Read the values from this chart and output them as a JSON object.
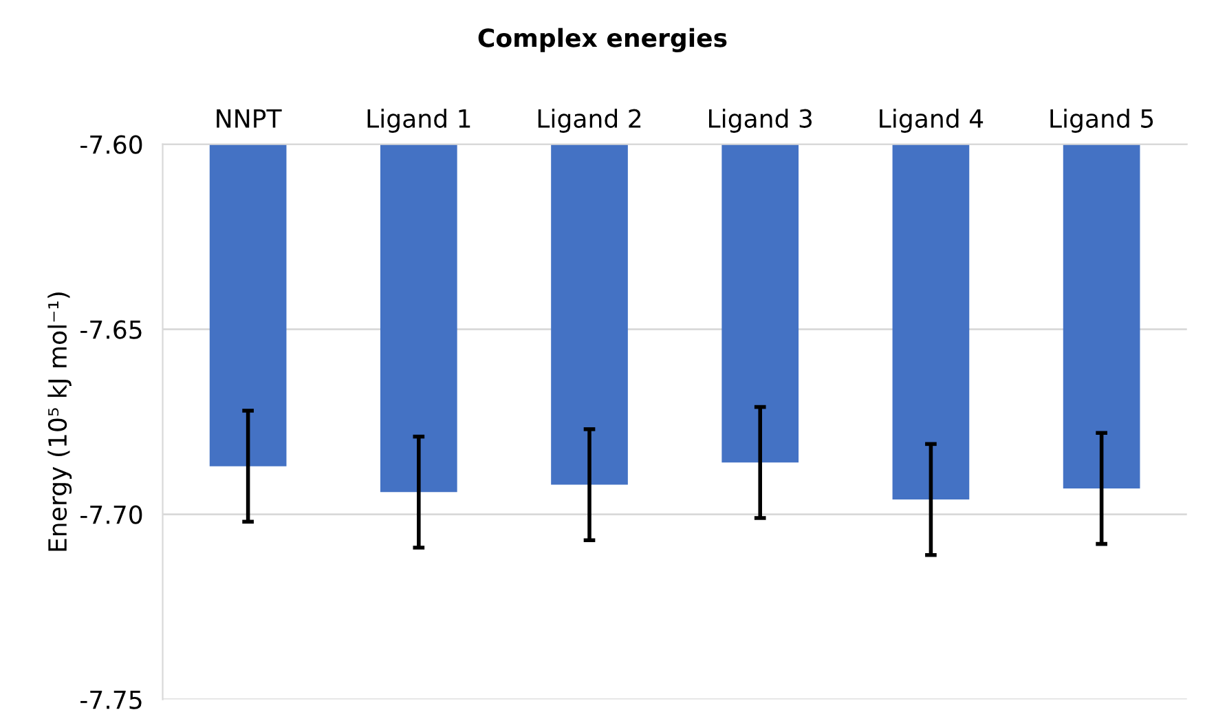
{
  "chart_data": {
    "type": "bar",
    "title": "Complex energies",
    "ylabel": "Energy (10⁵ kJ mol⁻¹)",
    "categories": [
      "NNPT",
      "Ligand 1",
      "Ligand 2",
      "Ligand 3",
      "Ligand 4",
      "Ligand 5"
    ],
    "values": [
      -7.687,
      -7.694,
      -7.692,
      -7.686,
      -7.696,
      -7.693
    ],
    "errors": [
      0.015,
      0.015,
      0.015,
      0.015,
      0.015,
      0.015
    ],
    "color": "#4472c4",
    "ylim": [
      -7.75,
      -7.6
    ],
    "yticks": [
      {
        "value": -7.75,
        "label": "-7.75"
      },
      {
        "value": -7.7,
        "label": "-7.70"
      },
      {
        "value": -7.65,
        "label": "-7.65"
      },
      {
        "value": -7.6,
        "label": "-7.60"
      }
    ],
    "grid": "y"
  }
}
